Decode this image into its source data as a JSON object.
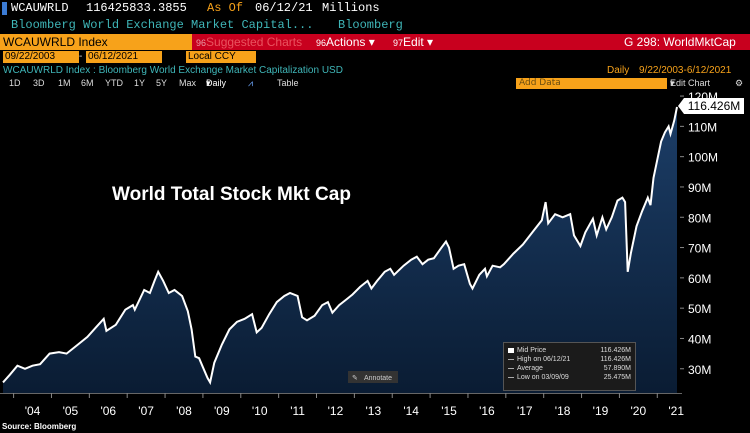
{
  "header": {
    "ticker": "WCAUWRLD",
    "price": "116425833.3855",
    "asof_label": "As Of",
    "asof_date": "06/12/21",
    "unit": "Millions",
    "name": "Bloomberg World Exchange Market Capital...",
    "source": "Bloomberg"
  },
  "toolbar": {
    "index_label": "WCAUWRLD Index",
    "suggested_charts": "Suggested Charts",
    "suggested_num": "96",
    "actions_num": "96",
    "actions": "Actions",
    "edit_num": "97",
    "edit": "Edit",
    "page_ref": "G 298: WorldMktCap"
  },
  "dates": {
    "start": "09/22/2003",
    "end": "06/12/2021",
    "currency": "Local CCY"
  },
  "subtitle": {
    "left": "WCAUWRLD Index : Bloomberg World Exchange Market Capitalization USD",
    "freq": "Daily",
    "range": "9/22/2003-6/12/2021"
  },
  "ranges": [
    "1D",
    "3D",
    "1M",
    "6M",
    "YTD",
    "1Y",
    "5Y",
    "Max"
  ],
  "period_select": "Daily",
  "table_label": "Table",
  "add_data_placeholder": "Add Data",
  "edit_chart_label": "Edit Chart",
  "annotate_label": "Annotate",
  "source_note": "Source: Bloomberg",
  "colors": {
    "line": "#ffffff",
    "area_top": "#1c3e68",
    "area_bottom": "#0a1c33",
    "orange": "#f7a21a",
    "red_bar": "#c8001e",
    "teal": "#3fb6b8"
  },
  "legend": {
    "rows": [
      {
        "label": "Mid Price",
        "value": "116.426M"
      },
      {
        "label": "High on 06/12/21",
        "value": "116.426M"
      },
      {
        "label": "Average",
        "value": "57.890M"
      },
      {
        "label": "Low on 03/09/09",
        "value": "25.475M"
      }
    ]
  },
  "chart_data": {
    "type": "area",
    "title": "World Total Stock Mkt Cap",
    "ylabel": "",
    "xlabel": "",
    "ylim": [
      22,
      122
    ],
    "xlim": [
      2003.72,
      2021.6
    ],
    "y_ticks": [
      "30M",
      "40M",
      "50M",
      "60M",
      "70M",
      "80M",
      "90M",
      "100M",
      "110M",
      "120M"
    ],
    "y_tick_values": [
      30,
      40,
      50,
      60,
      70,
      80,
      90,
      100,
      110,
      120
    ],
    "x_ticks": [
      "'04",
      "'05",
      "'06",
      "'07",
      "'08",
      "'09",
      "'10",
      "'11",
      "'12",
      "'13",
      "'14",
      "'15",
      "'16",
      "'17",
      "'18",
      "'19",
      "'20",
      "'21"
    ],
    "last_value_label": "116.426M",
    "series": [
      {
        "values": [
          [
            2003.72,
            25.5
          ],
          [
            2003.9,
            28.0
          ],
          [
            2004.1,
            31.0
          ],
          [
            2004.3,
            30.0
          ],
          [
            2004.5,
            31.0
          ],
          [
            2004.7,
            31.5
          ],
          [
            2004.95,
            35.0
          ],
          [
            2005.2,
            35.5
          ],
          [
            2005.4,
            35.0
          ],
          [
            2005.7,
            38.0
          ],
          [
            2005.95,
            40.5
          ],
          [
            2006.2,
            44.0
          ],
          [
            2006.38,
            46.5
          ],
          [
            2006.45,
            42.5
          ],
          [
            2006.7,
            44.5
          ],
          [
            2006.95,
            49.5
          ],
          [
            2007.15,
            51.0
          ],
          [
            2007.2,
            49.5
          ],
          [
            2007.45,
            56.0
          ],
          [
            2007.6,
            55.0
          ],
          [
            2007.72,
            59.0
          ],
          [
            2007.82,
            62.0
          ],
          [
            2007.95,
            59.0
          ],
          [
            2008.1,
            55.0
          ],
          [
            2008.25,
            56.0
          ],
          [
            2008.45,
            54.0
          ],
          [
            2008.6,
            49.0
          ],
          [
            2008.7,
            43.0
          ],
          [
            2008.8,
            34.0
          ],
          [
            2008.9,
            33.5
          ],
          [
            2009.0,
            30.5
          ],
          [
            2009.12,
            27.0
          ],
          [
            2009.19,
            25.5
          ],
          [
            2009.3,
            32.0
          ],
          [
            2009.5,
            38.0
          ],
          [
            2009.7,
            43.0
          ],
          [
            2009.9,
            45.5
          ],
          [
            2010.1,
            46.5
          ],
          [
            2010.3,
            48.0
          ],
          [
            2010.42,
            42.0
          ],
          [
            2010.55,
            43.5
          ],
          [
            2010.75,
            48.0
          ],
          [
            2010.95,
            52.0
          ],
          [
            2011.15,
            54.0
          ],
          [
            2011.3,
            55.0
          ],
          [
            2011.5,
            54.0
          ],
          [
            2011.62,
            47.0
          ],
          [
            2011.75,
            46.0
          ],
          [
            2011.95,
            47.5
          ],
          [
            2012.15,
            51.0
          ],
          [
            2012.3,
            52.0
          ],
          [
            2012.42,
            48.5
          ],
          [
            2012.6,
            51.0
          ],
          [
            2012.8,
            53.0
          ],
          [
            2012.95,
            54.5
          ],
          [
            2013.15,
            57.0
          ],
          [
            2013.35,
            59.0
          ],
          [
            2013.45,
            56.5
          ],
          [
            2013.6,
            59.0
          ],
          [
            2013.8,
            62.0
          ],
          [
            2013.95,
            63.0
          ],
          [
            2014.05,
            61.0
          ],
          [
            2014.3,
            64.0
          ],
          [
            2014.5,
            66.0
          ],
          [
            2014.65,
            67.0
          ],
          [
            2014.8,
            64.5
          ],
          [
            2014.95,
            66.0
          ],
          [
            2015.1,
            66.5
          ],
          [
            2015.3,
            70.0
          ],
          [
            2015.42,
            72.0
          ],
          [
            2015.5,
            70.0
          ],
          [
            2015.62,
            63.0
          ],
          [
            2015.75,
            64.0
          ],
          [
            2015.9,
            64.5
          ],
          [
            2016.05,
            58.0
          ],
          [
            2016.12,
            56.5
          ],
          [
            2016.3,
            61.0
          ],
          [
            2016.45,
            63.0
          ],
          [
            2016.5,
            60.5
          ],
          [
            2016.65,
            64.0
          ],
          [
            2016.85,
            63.5
          ],
          [
            2016.95,
            64.5
          ],
          [
            2017.2,
            68.0
          ],
          [
            2017.45,
            71.0
          ],
          [
            2017.7,
            75.0
          ],
          [
            2017.95,
            79.0
          ],
          [
            2018.05,
            85.0
          ],
          [
            2018.12,
            78.0
          ],
          [
            2018.3,
            81.0
          ],
          [
            2018.5,
            80.0
          ],
          [
            2018.7,
            81.0
          ],
          [
            2018.8,
            74.0
          ],
          [
            2018.97,
            70.5
          ],
          [
            2019.1,
            75.0
          ],
          [
            2019.3,
            79.5
          ],
          [
            2019.4,
            74.0
          ],
          [
            2019.55,
            80.0
          ],
          [
            2019.65,
            76.0
          ],
          [
            2019.8,
            80.0
          ],
          [
            2019.95,
            85.5
          ],
          [
            2020.08,
            86.5
          ],
          [
            2020.15,
            85.0
          ],
          [
            2020.22,
            62.0
          ],
          [
            2020.3,
            68.0
          ],
          [
            2020.45,
            77.0
          ],
          [
            2020.6,
            82.0
          ],
          [
            2020.75,
            86.5
          ],
          [
            2020.82,
            84.0
          ],
          [
            2020.9,
            93.0
          ],
          [
            2021.0,
            99.0
          ],
          [
            2021.1,
            105.0
          ],
          [
            2021.2,
            108.0
          ],
          [
            2021.3,
            110.0
          ],
          [
            2021.35,
            107.5
          ],
          [
            2021.45,
            112.0
          ],
          [
            2021.52,
            116.4
          ]
        ]
      }
    ]
  }
}
